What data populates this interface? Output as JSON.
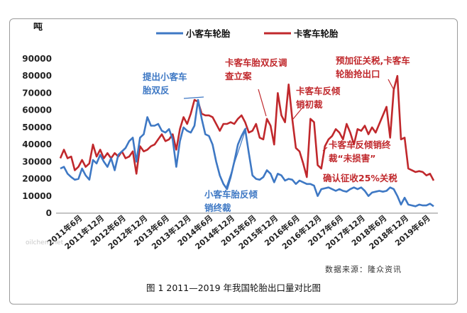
{
  "chart_data": {
    "type": "line",
    "ylabel": "吨",
    "ylim": [
      0,
      90000
    ],
    "yticks": [
      0,
      10000,
      20000,
      30000,
      40000,
      50000,
      60000,
      70000,
      80000,
      90000
    ],
    "x_tick_labels": [
      "2011年6月",
      "2011年12月",
      "2012年6月",
      "2012年12月",
      "2013年6月",
      "2013年12月",
      "2014年6月",
      "2014年12月",
      "2015年6月",
      "2015年12月",
      "2016年6月",
      "2016年12月",
      "2017年6月",
      "2017年12月",
      "2018年6月",
      "2018年12月",
      "2019年6月"
    ],
    "x_tick_positions": [
      5,
      11,
      17,
      23,
      29,
      35,
      41,
      47,
      53,
      59,
      65,
      71,
      77,
      83,
      89,
      95,
      101
    ],
    "legend_position": "top",
    "series": [
      {
        "name": "小客车轮胎",
        "color": "#3e78c4",
        "values": [
          26000,
          27000,
          23000,
          21000,
          19500,
          20000,
          26000,
          22000,
          19500,
          31000,
          29000,
          34000,
          30000,
          27000,
          32000,
          25000,
          34000,
          36000,
          38000,
          42000,
          44000,
          30000,
          44000,
          46000,
          56000,
          51000,
          51000,
          52000,
          48000,
          47000,
          49000,
          43000,
          27000,
          42000,
          50000,
          48000,
          47000,
          51000,
          66000,
          55000,
          46000,
          45000,
          40000,
          30000,
          22000,
          17000,
          14000,
          21000,
          30000,
          40000,
          45000,
          49000,
          35000,
          22000,
          20000,
          19500,
          21000,
          25000,
          23000,
          18000,
          23000,
          22000,
          19000,
          20000,
          19500,
          17000,
          19000,
          18000,
          17000,
          17000,
          16000,
          10000,
          14000,
          14500,
          15000,
          14000,
          13000,
          14000,
          13000,
          12500,
          14000,
          15000,
          14000,
          15000,
          13000,
          10000,
          12000,
          12500,
          13000,
          12500,
          13000,
          15000,
          14000,
          10000,
          5000,
          9000,
          5000,
          4500,
          4000,
          5000,
          4500,
          4500,
          5500,
          4000
        ]
      },
      {
        "name": "卡客车轮胎",
        "color": "#c0282c",
        "values": [
          32000,
          37000,
          32000,
          33000,
          25000,
          27000,
          31000,
          27000,
          29000,
          40000,
          33000,
          37000,
          32000,
          35000,
          32000,
          35000,
          33000,
          36000,
          32000,
          33000,
          36000,
          23000,
          39000,
          36000,
          37000,
          39000,
          40000,
          43000,
          46000,
          42000,
          43000,
          46000,
          37000,
          49000,
          56000,
          52000,
          58000,
          66000,
          65000,
          58000,
          57000,
          57000,
          56000,
          52000,
          48000,
          52000,
          52000,
          53000,
          52000,
          55000,
          57000,
          53000,
          47000,
          48000,
          52000,
          44000,
          43000,
          55000,
          51000,
          40000,
          70000,
          57000,
          53000,
          75000,
          55000,
          38000,
          36000,
          29000,
          21000,
          55000,
          53000,
          28000,
          26000,
          39000,
          43000,
          45000,
          49000,
          47000,
          43000,
          52000,
          47000,
          40000,
          49000,
          48000,
          51000,
          46000,
          50000,
          47000,
          52000,
          57000,
          62000,
          44000,
          72000,
          80000,
          43000,
          44000,
          26000,
          25000,
          24000,
          24500,
          24000,
          22000,
          23000,
          19000
        ]
      }
    ],
    "annotations": [
      "提出小客车胎双反",
      "卡客车胎双反调查立案",
      "卡客车反倾销初裁",
      "预加征关税,卡客车轮胎抢出口",
      "小客车胎反倾销终裁",
      "卡客车反倾销终裁“未损害”",
      "确认征收25%关税"
    ]
  },
  "source": "数据来源：隆众资讯",
  "caption": "图 1  2011—2019 年我国轮胎出口量对比图",
  "watermark": "oilchem.net"
}
